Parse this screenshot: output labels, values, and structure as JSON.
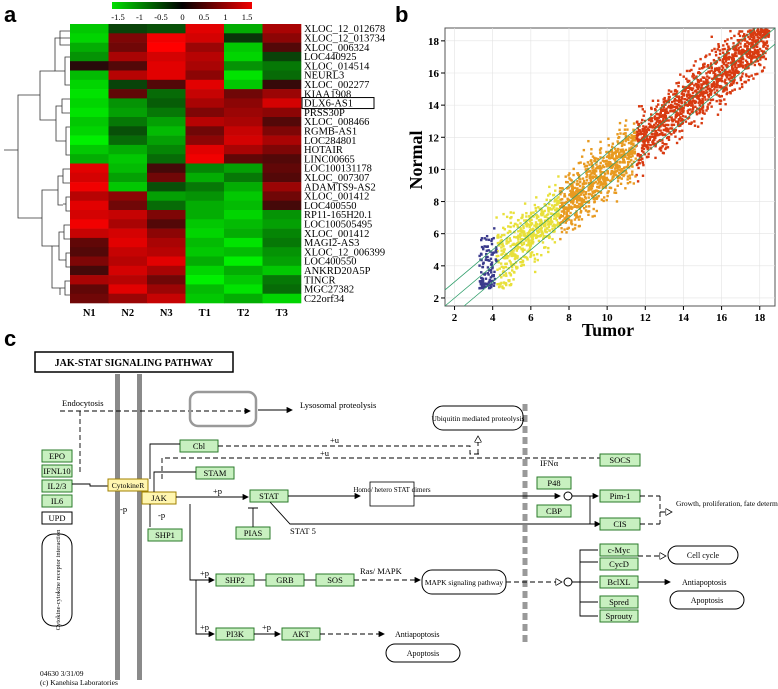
{
  "panels": {
    "a": "a",
    "b": "b",
    "c": "c"
  },
  "heatmap": {
    "scale_ticks": [
      "-1.5",
      "-1",
      "-0.5",
      "0",
      "0.5",
      "1",
      "1.5"
    ],
    "columns": [
      "N1",
      "N2",
      "N3",
      "T1",
      "T2",
      "T3"
    ],
    "genes": [
      "XLOC_12_012678",
      "XLOC_12_013734",
      "XLOC_006324",
      "LOC440925",
      "XLOC_014514",
      "NEURL3",
      "XLOC_002277",
      "KIAA1908",
      "DLX6-AS1",
      "PRSS30P",
      "XLOC_008466",
      "RGMB-AS1",
      "LOC284801",
      "HOTAIR",
      "LINC00665",
      "LOC100131178",
      "XLOC_007307",
      "ADAMTS9-AS2",
      "XLOC_001412",
      "LOC400550",
      "RP11-165H20.1",
      "LOC100505495",
      "XLOC_001412",
      "MAGI2-AS3",
      "XLOC_12_006399",
      "LOC400550",
      "ANKRD20A5P",
      "TINCR",
      "MGC27382",
      "C22orf34"
    ],
    "highlighted_gene": "DLX6-AS1",
    "values": [
      [
        -1.2,
        -0.2,
        -0.3,
        1.3,
        -1.0,
        0.9
      ],
      [
        -1.3,
        0.6,
        1.4,
        1.2,
        -0.1,
        0.7
      ],
      [
        -1.0,
        0.5,
        1.5,
        0.8,
        -1.2,
        0.3
      ],
      [
        -0.8,
        0.9,
        1.2,
        1.0,
        -1.3,
        -0.2
      ],
      [
        0.0,
        0.3,
        1.3,
        0.9,
        -0.8,
        -0.6
      ],
      [
        -1.1,
        1.0,
        1.3,
        0.7,
        -1.4,
        -0.5
      ],
      [
        -1.3,
        -0.2,
        0.3,
        1.3,
        -1.2,
        0.1
      ],
      [
        -1.4,
        0.4,
        -0.5,
        1.1,
        0.5,
        0.8
      ],
      [
        -1.3,
        -0.8,
        -0.4,
        0.9,
        0.7,
        1.2
      ],
      [
        -1.4,
        -0.9,
        -0.6,
        0.6,
        0.8,
        0.7
      ],
      [
        -1.2,
        -0.6,
        -0.9,
        1.0,
        0.9,
        0.3
      ],
      [
        -1.3,
        -0.3,
        -1.1,
        0.5,
        1.1,
        0.6
      ],
      [
        -1.5,
        -0.5,
        -0.9,
        0.7,
        1.2,
        0.9
      ],
      [
        -1.2,
        -1.0,
        -0.7,
        1.3,
        0.9,
        0.6
      ],
      [
        -1.0,
        -1.2,
        -0.5,
        1.4,
        0.4,
        0.3
      ],
      [
        1.3,
        -1.1,
        0.2,
        -0.7,
        -0.9,
        0.4
      ],
      [
        1.2,
        -0.9,
        0.5,
        -1.0,
        -0.6,
        0.3
      ],
      [
        1.4,
        -1.2,
        -0.3,
        -0.6,
        -1.0,
        0.8
      ],
      [
        1.0,
        0.7,
        -0.9,
        -0.8,
        -1.2,
        0.5
      ],
      [
        1.3,
        0.5,
        -0.5,
        -1.0,
        -1.1,
        0.2
      ],
      [
        1.2,
        1.1,
        0.6,
        -1.0,
        -1.3,
        -0.8
      ],
      [
        1.4,
        0.9,
        0.3,
        -1.2,
        -1.1,
        -0.9
      ],
      [
        1.1,
        1.2,
        0.7,
        -1.3,
        -1.0,
        -0.7
      ],
      [
        0.4,
        1.3,
        0.9,
        -1.1,
        -1.4,
        -0.6
      ],
      [
        0.3,
        1.1,
        1.0,
        -1.2,
        -1.1,
        -0.8
      ],
      [
        0.6,
        1.0,
        1.3,
        -1.0,
        -1.5,
        -0.9
      ],
      [
        0.2,
        1.2,
        0.9,
        -1.3,
        -1.0,
        -1.2
      ],
      [
        0.9,
        1.0,
        0.5,
        -1.5,
        -1.2,
        -0.6
      ],
      [
        0.4,
        1.3,
        0.8,
        -1.1,
        -1.4,
        -0.5
      ],
      [
        0.5,
        0.8,
        1.1,
        -1.2,
        -1.0,
        -1.3
      ]
    ]
  },
  "scatter": {
    "type": "scatter",
    "xlabel": "Tumor",
    "ylabel": "Normal",
    "xlim": [
      1.5,
      18.8
    ],
    "ylim": [
      1.5,
      18.8
    ],
    "x_ticks": [
      "2",
      "4",
      "6",
      "8",
      "10",
      "12",
      "14",
      "16",
      "18"
    ],
    "y_ticks": [
      "2",
      "4",
      "6",
      "8",
      "10",
      "12",
      "14",
      "16",
      "18"
    ],
    "fold_lines": [
      0,
      1,
      -1
    ],
    "colors": [
      "#3a3a8c",
      "#e8e03a",
      "#e89a20",
      "#d83a10"
    ]
  },
  "pathway": {
    "title": "JAK-STAT SIGNALING PATHWAY",
    "ligands": [
      "EPO",
      "IFNL10",
      "IL2/3",
      "IL6"
    ],
    "upd": "UPD",
    "interaction_label": "Cytokine-cytokine receptor interaction",
    "cytokine_r": "CytokineR",
    "jak": "JAK",
    "cbl": "Cbl",
    "stam": "STAM",
    "stat": "STAT",
    "pias": "PIAS",
    "shp1": "SHP1",
    "shp2": "SHP2",
    "grb": "GRB",
    "sos": "SOS",
    "pi3k": "PI3K",
    "akt": "AKT",
    "p48": "P48",
    "cbp": "CBP",
    "socs": "SOCS",
    "pim1": "Pim-1",
    "cis": "CIS",
    "cmyc": "c-Myc",
    "cycd": "CycD",
    "bclxl": "BclXL",
    "spred": "Spred",
    "sprouty": "Sprouty",
    "endocytosis": "Endocytosis",
    "lysosomal": "Lysosomal proteolysis",
    "ubiquitin": "Ubiquitin mediated proteolysis",
    "homo_hetero": "Homo/ hetero STAT dimers",
    "stat5": "STAT 5",
    "ras_mapk": "Ras/ MAPK",
    "mapk_pathway": "MAPK signaling pathway",
    "ifn": "IFNα",
    "growth": "Growth, proliferation, fate determination, development, immunity",
    "cell_cycle": "Cell cycle",
    "antiapoptosis": "Antiapoptosis",
    "apoptosis": "Apoptosis",
    "plus_p": "+p",
    "minus_p": "-p",
    "plus_u": "+u",
    "footer_id": "04630   3/31/09",
    "footer_lab": "(c) Kanehisa Laboratories"
  }
}
